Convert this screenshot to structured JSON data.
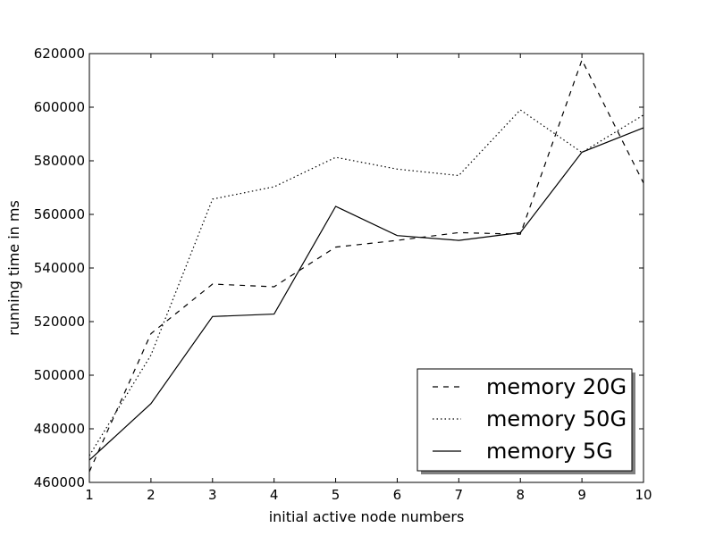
{
  "chart_data": {
    "type": "line",
    "title": "",
    "xlabel": "initial active node numbers",
    "ylabel": "running time in ms",
    "xlim": [
      1,
      10
    ],
    "ylim": [
      460000,
      620000
    ],
    "x_ticks": [
      "1",
      "2",
      "3",
      "4",
      "5",
      "6",
      "7",
      "8",
      "9",
      "10"
    ],
    "y_ticks": [
      "460000",
      "480000",
      "500000",
      "520000",
      "540000",
      "560000",
      "580000",
      "600000",
      "620000"
    ],
    "x": [
      1,
      2,
      3,
      4,
      5,
      6,
      7,
      8,
      9,
      10
    ],
    "series": [
      {
        "name": "memory 20G",
        "style": "dashed",
        "values": [
          464000,
          515500,
          534000,
          533000,
          547800,
          550300,
          553200,
          552600,
          617600,
          571700
        ]
      },
      {
        "name": "memory 50G",
        "style": "dotted",
        "values": [
          470000,
          507500,
          565700,
          570300,
          581300,
          576900,
          574500,
          599000,
          583100,
          597100
        ]
      },
      {
        "name": "memory 5G",
        "style": "solid",
        "values": [
          468300,
          489400,
          521900,
          522800,
          563000,
          552100,
          550300,
          553200,
          583200,
          592300
        ]
      }
    ],
    "grid": false,
    "legend_position": "bottom-right",
    "colors": {
      "line": "#000000",
      "background": "#ffffff"
    }
  }
}
